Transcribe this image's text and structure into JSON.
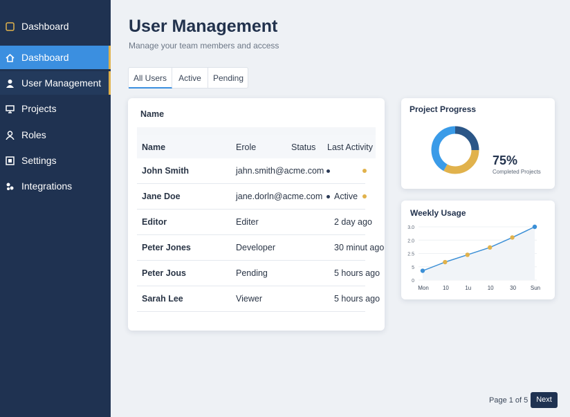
{
  "sidebar": {
    "brand": "Dashboard",
    "items": [
      "Dashboard",
      "User Management",
      "Projects",
      "Roles",
      "Settings",
      "Integrations"
    ]
  },
  "header": {
    "title": "User Management",
    "subtitle": "Manage your team members and access"
  },
  "tabs": [
    "All Users",
    "Active",
    "Pending"
  ],
  "table": {
    "caption": "Name",
    "columns": [
      "Name",
      "Erole",
      "Status",
      "Last Activity"
    ],
    "rows": [
      {
        "cells": [
          "John Smith",
          "jahn.smith@acme.com"
        ],
        "dots": true
      },
      {
        "cells": [
          "Jane Doe",
          "jane.dorln@acme.com",
          "Active"
        ],
        "dots": true
      },
      {
        "cells": [
          "Editor",
          "Editer",
          "2 day ago"
        ]
      },
      {
        "cells": [
          "Peter Jones",
          "Developer",
          "30 minut ago"
        ]
      },
      {
        "cells": [
          "Peter Jous",
          "Pending",
          "5 hours ago"
        ]
      },
      {
        "cells": [
          "Sarah Lee",
          "Viewer",
          "5 hours ago"
        ]
      }
    ]
  },
  "project_progress": {
    "type": "donut",
    "title": "Project Progress",
    "value": 75,
    "value_label": "75%",
    "caption": "Completed Projects",
    "segments": [
      {
        "value": 25,
        "color": "#2b5687"
      },
      {
        "value": 33,
        "color": "#e1b24c"
      },
      {
        "value": 42,
        "color": "#3a9be8"
      }
    ]
  },
  "weekly_usage": {
    "type": "line",
    "title": "Weekly Usage",
    "categories": [
      "Mon",
      "10",
      "1u",
      "10",
      "30",
      "Sun"
    ],
    "values": [
      0.7,
      1.35,
      1.9,
      2.45,
      3.2,
      4.0
    ],
    "color": "#3b8fd6",
    "point_colors": [
      "#3b8fd6",
      "#e1b24c",
      "#e1b24c",
      "#e1b24c",
      "#e1b24c",
      "#3b8fd6"
    ],
    "ylim": [
      0,
      4
    ],
    "y_axis_labels": [
      "0",
      "5",
      "2.5",
      "2.0",
      "3.0"
    ],
    "grid": true
  },
  "pagination": {
    "label": "Page 1 of 5",
    "next": "Next"
  }
}
